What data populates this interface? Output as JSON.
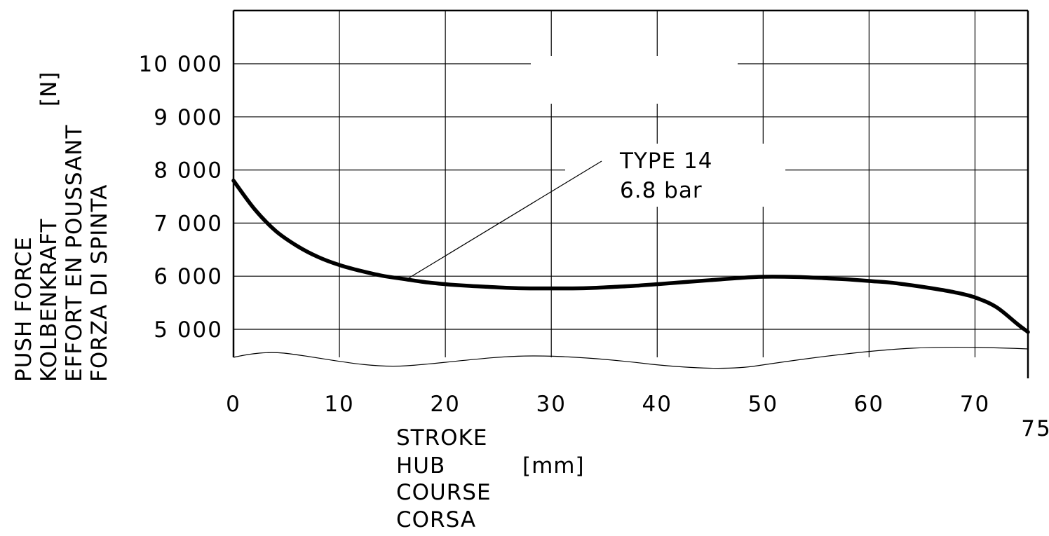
{
  "chart_data": {
    "type": "line",
    "x_ticks": [
      "0",
      "10",
      "20",
      "30",
      "40",
      "50",
      "60",
      "70"
    ],
    "x_end_tick": "75",
    "y_ticks": [
      "5 000",
      "6 000",
      "7 000",
      "8 000",
      "9 000",
      "10 000"
    ],
    "xlim": [
      0,
      75
    ],
    "ylim": [
      4500,
      11000
    ],
    "y_unit": "[N]",
    "ylabel": [
      "PUSH FORCE",
      "KOLBENKRAFT",
      "EFFORT EN POUSSANT",
      "FORZA DI SPINTA"
    ],
    "xlabel": [
      "STROKE",
      "HUB",
      "COURSE",
      "CORSA"
    ],
    "x_unit": "[mm]",
    "grid": true,
    "axis_break": "wavy line below 5 000",
    "series": [
      {
        "name": "TYPE 14",
        "pressure": "6.8 bar",
        "color": "#000000",
        "x": [
          0,
          2,
          4,
          6,
          8,
          10,
          12,
          14,
          16,
          18,
          20,
          22,
          24,
          26,
          28,
          30,
          32,
          34,
          36,
          38,
          40,
          42,
          44,
          46,
          48,
          50,
          52,
          54,
          56,
          58,
          60,
          62,
          64,
          66,
          68,
          70,
          72,
          74,
          75
        ],
        "y": [
          7800,
          7260,
          6850,
          6570,
          6360,
          6210,
          6100,
          6010,
          5950,
          5890,
          5850,
          5820,
          5800,
          5780,
          5770,
          5770,
          5770,
          5780,
          5800,
          5820,
          5850,
          5880,
          5910,
          5940,
          5970,
          5990,
          5990,
          5980,
          5960,
          5940,
          5910,
          5880,
          5830,
          5770,
          5700,
          5600,
          5420,
          5100,
          4950
        ]
      }
    ]
  }
}
